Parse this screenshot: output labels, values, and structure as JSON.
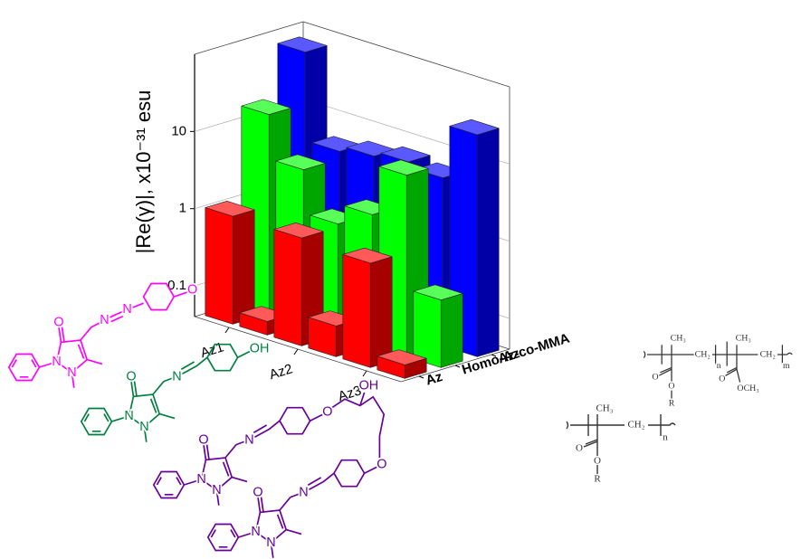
{
  "chart_data": {
    "type": "bar3d",
    "ylabel": "|Re(γ)|, x10⁻³¹ esu",
    "categories": [
      "Az1",
      null,
      "Az2",
      null,
      "Az3",
      null
    ],
    "series": [
      {
        "name": "Az",
        "color": "#ff0000",
        "values": [
          1.0,
          0.06,
          1.0,
          0.1,
          0.9,
          0.06
        ]
      },
      {
        "name": "Homo-Az",
        "color": "#00ff00",
        "values": [
          15,
          4,
          1.1,
          2,
          9,
          0.3
        ]
      },
      {
        "name": "Az-co-MMA",
        "color": "#0000ff",
        "values": [
          70,
          5,
          6,
          7,
          6,
          30
        ]
      }
    ],
    "ylim": [
      0.04,
      100
    ],
    "yticks": [
      0.1,
      1,
      10
    ],
    "log_y": true,
    "grid": true
  },
  "structures": [
    {
      "color": "#ff00ff",
      "labels": [
        "O",
        "N",
        "N",
        "N",
        "N",
        "O"
      ]
    },
    {
      "color": "#008040",
      "labels": [
        "O",
        "N",
        "N",
        "N",
        "OH"
      ]
    },
    {
      "color": "#660099",
      "labels": [
        "O",
        "N",
        "N",
        "N",
        "O",
        "OH",
        "O",
        "N",
        "N",
        "N",
        "O"
      ]
    },
    {
      "color": "#333333",
      "labels": [
        "CH₃",
        "O",
        "O",
        "R",
        "CH₂",
        "n"
      ]
    },
    {
      "color": "#333333",
      "labels": [
        "CH₃",
        "O",
        "O",
        "R",
        "CH₂",
        "n",
        "CH₃",
        "O",
        "OCH₃",
        "CH₂",
        "m"
      ]
    }
  ]
}
